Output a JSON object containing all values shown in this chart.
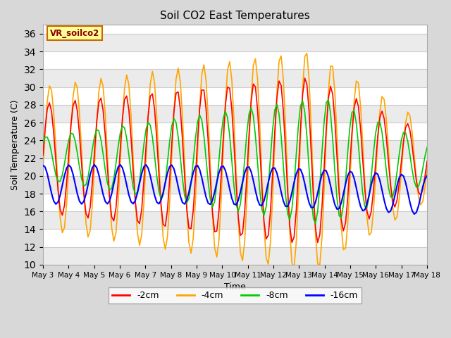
{
  "title": "Soil CO2 East Temperatures",
  "xlabel": "Time",
  "ylabel": "Soil Temperature (C)",
  "ylim": [
    10,
    37
  ],
  "yticks": [
    10,
    12,
    14,
    16,
    18,
    20,
    22,
    24,
    26,
    28,
    30,
    32,
    34,
    36
  ],
  "x_labels": [
    "May 3",
    "May 4",
    "May 5",
    "May 6",
    "May 7",
    "May 8",
    "May 9",
    "May 10",
    "May 11",
    "May 12",
    "May 13",
    "May 14",
    "May 15",
    "May 16",
    "May 17",
    "May 18"
  ],
  "colors": {
    "-2cm": "#ff0000",
    "-4cm": "#ffa500",
    "-8cm": "#00cc00",
    "-16cm": "#0000ff"
  },
  "legend_label": "VR_soilco2",
  "background_color": "#d8d8d8",
  "plot_bg": "#ffffff",
  "annotation_bg": "#ffff99",
  "annotation_border": "#cc6600",
  "grid_color": "#cccccc",
  "n_days": 15,
  "pts_per_day": 12
}
